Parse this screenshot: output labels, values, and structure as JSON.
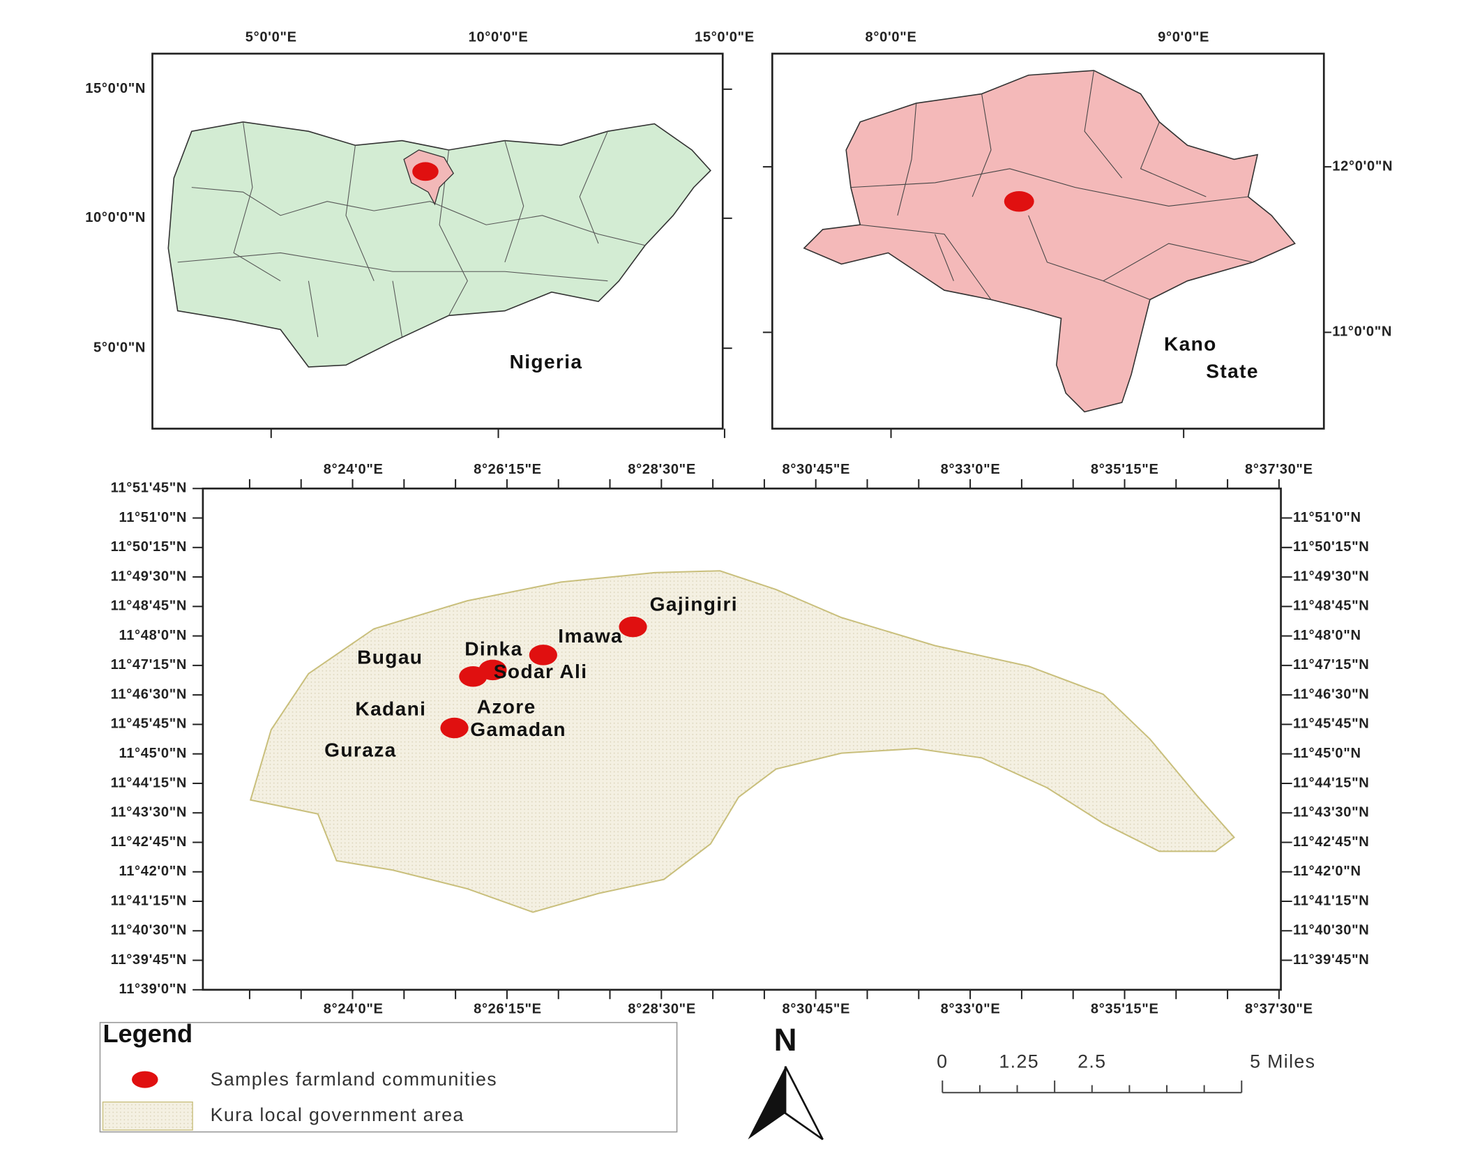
{
  "nigeria_map": {
    "label": "Nigeria",
    "x_ticks": [
      "5°0'0\"E",
      "10°0'0\"E",
      "15°0'0\"E"
    ],
    "y_ticks": [
      "15°0'0\"N",
      "10°0'0\"N",
      "5°0'0\"N"
    ]
  },
  "kano_map": {
    "label_lines": [
      "Kano",
      "State"
    ],
    "x_ticks": [
      "8°0'0\"E",
      "9°0'0\"E"
    ],
    "y_ticks": [
      "12°0'0\"N",
      "11°0'0\"N"
    ]
  },
  "main_map": {
    "x_ticks": [
      "8°24'0\"E",
      "8°26'15\"E",
      "8°28'30\"E",
      "8°30'45\"E",
      "8°33'0\"E",
      "8°35'15\"E",
      "8°37'30\"E"
    ],
    "y_ticks_left": [
      "11°51'45\"N",
      "11°51'0\"N",
      "11°50'15\"N",
      "11°49'30\"N",
      "11°48'45\"N",
      "11°48'0\"N",
      "11°47'15\"N",
      "11°46'30\"N",
      "11°45'45\"N",
      "11°45'0\"N",
      "11°44'15\"N",
      "11°43'30\"N",
      "11°42'45\"N",
      "11°42'0\"N",
      "11°41'15\"N",
      "11°40'30\"N",
      "11°39'45\"N",
      "11°39'0\"N"
    ],
    "y_ticks_right": [
      "11°51'0\"N",
      "11°50'15\"N",
      "11°49'30\"N",
      "11°48'45\"N",
      "11°48'0\"N",
      "11°47'15\"N",
      "11°46'30\"N",
      "11°45'45\"N",
      "11°45'0\"N",
      "11°44'15\"N",
      "11°43'30\"N",
      "11°42'45\"N",
      "11°42'0\"N",
      "11°41'15\"N",
      "11°40'30\"N",
      "11°39'45\"N"
    ],
    "communities": [
      "Gajingiri",
      "Imawa",
      "Dinka",
      "Bugau",
      "Sodar Ali",
      "Kadani",
      "Azore",
      "Gamadan",
      "Guraza"
    ]
  },
  "legend": {
    "title": "Legend",
    "items": [
      "Samples farmland communities",
      "Kura local government area"
    ]
  },
  "north_arrow": "N",
  "scale_bar": {
    "labels": [
      "0",
      "1.25",
      "2.5",
      "5 Miles"
    ]
  }
}
